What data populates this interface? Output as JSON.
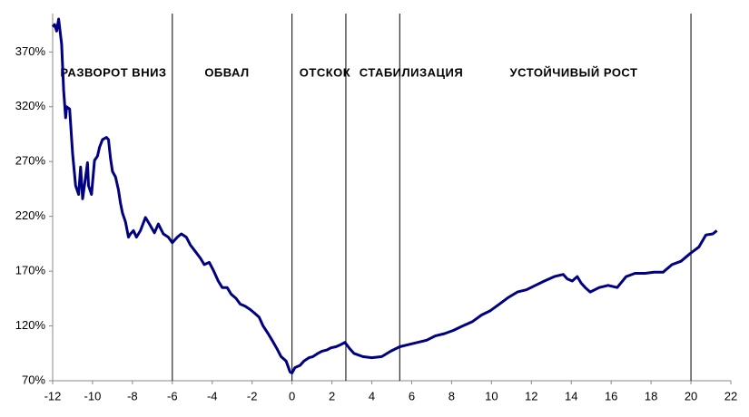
{
  "chart_data": {
    "type": "line",
    "annotations": [
      "РАЗВОРОТ ВНИЗ",
      "ОБВАЛ",
      "ОТСКОК",
      "СТАБИЛИЗАЦИЯ",
      "УСТОЙЧИВЫЙ РОСТ"
    ],
    "dividers": [
      -6,
      0,
      2.7,
      5.4,
      20
    ],
    "xlim": [
      -12,
      22
    ],
    "xticks": [
      -12,
      -10,
      -8,
      -6,
      -4,
      -2,
      0,
      2,
      4,
      6,
      8,
      10,
      12,
      14,
      16,
      18,
      20,
      22
    ],
    "ylim": [
      70,
      405
    ],
    "yticks": [
      {
        "value": 70,
        "label": "70%"
      },
      {
        "value": 120,
        "label": "120%"
      },
      {
        "value": 170,
        "label": "170%"
      },
      {
        "value": 220,
        "label": "220%"
      },
      {
        "value": 270,
        "label": "270%"
      },
      {
        "value": 320,
        "label": "320%"
      },
      {
        "value": 370,
        "label": "370%"
      }
    ],
    "grid": false,
    "series": [
      {
        "color": "#000080",
        "x": [
          -12,
          -11.9,
          -11.8,
          -11.7,
          -11.55,
          -11.45,
          -11.35,
          -11.3,
          -11.15,
          -11.0,
          -10.85,
          -10.7,
          -10.6,
          -10.5,
          -10.35,
          -10.25,
          -10.2,
          -10.05,
          -9.9,
          -9.75,
          -9.65,
          -9.5,
          -9.3,
          -9.2,
          -9.1,
          -9.0,
          -8.85,
          -8.7,
          -8.6,
          -8.5,
          -8.35,
          -8.2,
          -8.1,
          -7.95,
          -7.8,
          -7.6,
          -7.35,
          -7.15,
          -6.9,
          -6.7,
          -6.45,
          -6.2,
          -6.0,
          -5.75,
          -5.55,
          -5.3,
          -5.1,
          -4.85,
          -4.6,
          -4.4,
          -4.15,
          -3.95,
          -3.7,
          -3.5,
          -3.25,
          -3.05,
          -2.8,
          -2.6,
          -2.35,
          -2.1,
          -1.9,
          -1.65,
          -1.45,
          -1.2,
          -1.0,
          -0.75,
          -0.55,
          -0.3,
          -0.1,
          0,
          0.15,
          0.4,
          0.6,
          0.85,
          1.05,
          1.3,
          1.5,
          1.75,
          1.95,
          2.2,
          2.45,
          2.65,
          2.9,
          3.1,
          3.55,
          4.0,
          4.5,
          4.95,
          5.4,
          5.85,
          6.3,
          6.75,
          7.2,
          7.65,
          8.1,
          8.55,
          9.05,
          9.5,
          9.95,
          10.4,
          10.85,
          11.3,
          11.75,
          12.2,
          12.65,
          13.15,
          13.6,
          13.8,
          14.05,
          14.3,
          14.5,
          14.7,
          14.95,
          15.4,
          15.85,
          16.3,
          16.75,
          17.2,
          17.7,
          18.15,
          18.6,
          19.05,
          19.5,
          19.95,
          20.4,
          20.75,
          21.1,
          21.3
        ],
        "values": [
          393,
          395,
          389,
          400,
          377,
          335,
          310,
          320,
          318,
          277,
          248,
          240,
          265,
          236,
          256,
          269,
          248,
          240,
          271,
          275,
          283,
          290,
          292,
          290,
          273,
          261,
          256,
          244,
          232,
          223,
          215,
          201,
          204,
          207,
          201,
          207,
          219,
          213,
          205,
          213,
          204,
          201,
          196,
          201,
          204,
          201,
          194,
          188,
          182,
          176,
          178,
          171,
          161,
          155,
          155,
          149,
          145,
          140,
          138,
          135,
          132,
          128,
          120,
          113,
          107,
          99,
          92,
          88,
          78,
          77,
          82,
          84,
          88,
          91,
          92,
          95,
          97,
          98,
          100,
          101,
          103,
          105,
          99,
          95,
          92,
          91,
          92,
          97,
          101,
          103,
          105,
          107,
          111,
          113,
          116,
          120,
          124,
          130,
          134,
          140,
          146,
          151,
          153,
          157,
          161,
          165,
          167,
          163,
          161,
          165,
          159,
          155,
          151,
          155,
          157,
          155,
          165,
          168,
          168,
          169,
          169,
          176,
          179,
          186,
          192,
          203,
          204,
          207
        ]
      }
    ]
  }
}
